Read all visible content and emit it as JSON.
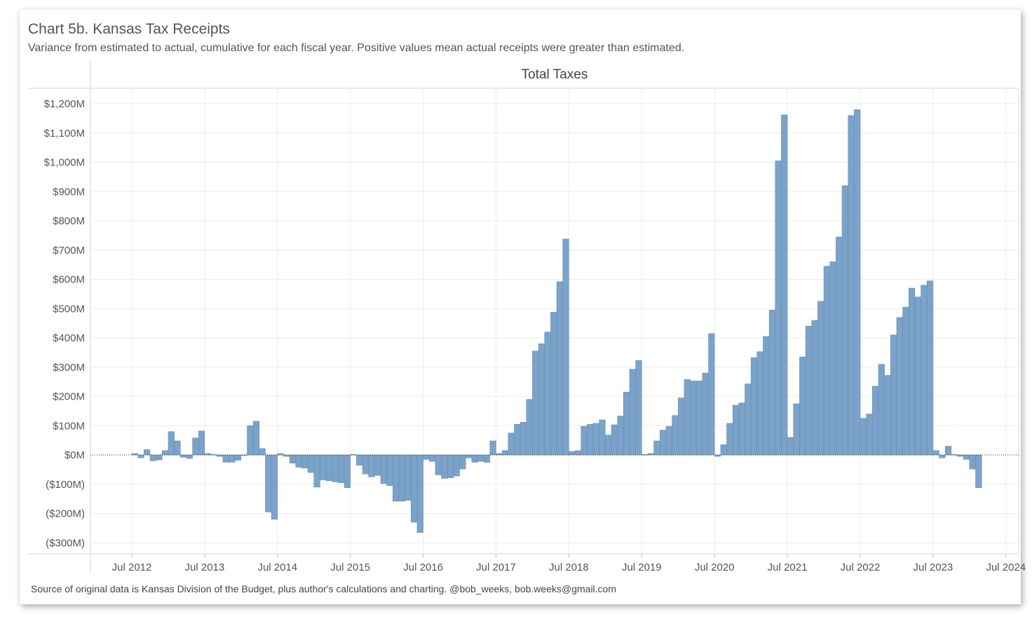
{
  "chart_data": {
    "type": "bar",
    "title": "Chart 5b. Kansas Tax Receipts",
    "subtitle": "Variance from estimated to actual, cumulative for each fiscal year.  Positive values mean actual receipts were greater than estimated.",
    "panel_title": "Total Taxes",
    "footer": "Source of original data is Kansas Division of the Budget, plus author's calculations and charting. @bob_weeks, bob.weeks@gmail.com",
    "xlabel": "",
    "ylabel": "",
    "ylim": [
      -330,
      1235
    ],
    "grid": true,
    "series_color": "#7ba3c9",
    "y_ticks": [
      {
        "value": 1200,
        "label": "$1,200M"
      },
      {
        "value": 1100,
        "label": "$1,100M"
      },
      {
        "value": 1000,
        "label": "$1,000M"
      },
      {
        "value": 900,
        "label": "$900M"
      },
      {
        "value": 800,
        "label": "$800M"
      },
      {
        "value": 700,
        "label": "$700M"
      },
      {
        "value": 600,
        "label": "$600M"
      },
      {
        "value": 500,
        "label": "$500M"
      },
      {
        "value": 400,
        "label": "$400M"
      },
      {
        "value": 300,
        "label": "$300M"
      },
      {
        "value": 200,
        "label": "$200M"
      },
      {
        "value": 100,
        "label": "$100M"
      },
      {
        "value": 0,
        "label": "$0M"
      },
      {
        "value": -100,
        "label": "($100M)"
      },
      {
        "value": -200,
        "label": "($200M)"
      },
      {
        "value": -300,
        "label": "($300M)"
      }
    ],
    "x_ticks": [
      "Jul 2012",
      "Jul 2013",
      "Jul 2014",
      "Jul 2015",
      "Jul 2016",
      "Jul 2017",
      "Jul 2018",
      "Jul 2019",
      "Jul 2020",
      "Jul 2021",
      "Jul 2022",
      "Jul 2023",
      "Jul 2024"
    ],
    "start_month": "Jul 2012",
    "values": [
      5,
      -10,
      18,
      -20,
      -17,
      15,
      80,
      48,
      -8,
      -12,
      58,
      82,
      5,
      2,
      -5,
      -25,
      -25,
      -18,
      -2,
      100,
      115,
      22,
      -195,
      -220,
      5,
      -5,
      -28,
      -42,
      -45,
      -60,
      -110,
      -85,
      -88,
      -92,
      -95,
      -112,
      2,
      -35,
      -65,
      -75,
      -70,
      -98,
      -105,
      -158,
      -158,
      -155,
      -230,
      -265,
      -15,
      -22,
      -68,
      -80,
      -78,
      -72,
      -48,
      -10,
      -25,
      -22,
      -25,
      48,
      5,
      15,
      75,
      105,
      112,
      190,
      355,
      380,
      420,
      488,
      592,
      738,
      12,
      15,
      98,
      105,
      108,
      120,
      68,
      103,
      133,
      215,
      293,
      323,
      2,
      5,
      48,
      85,
      98,
      135,
      195,
      258,
      253,
      253,
      280,
      415,
      -5,
      35,
      108,
      170,
      178,
      243,
      333,
      353,
      405,
      495,
      1005,
      1162,
      60,
      175,
      335,
      440,
      460,
      525,
      645,
      660,
      745,
      920,
      1160,
      1180,
      125,
      140,
      235,
      310,
      272,
      410,
      470,
      505,
      570,
      540,
      580,
      595,
      15,
      -10,
      30,
      2,
      -5,
      -15,
      -48,
      -112
    ]
  }
}
